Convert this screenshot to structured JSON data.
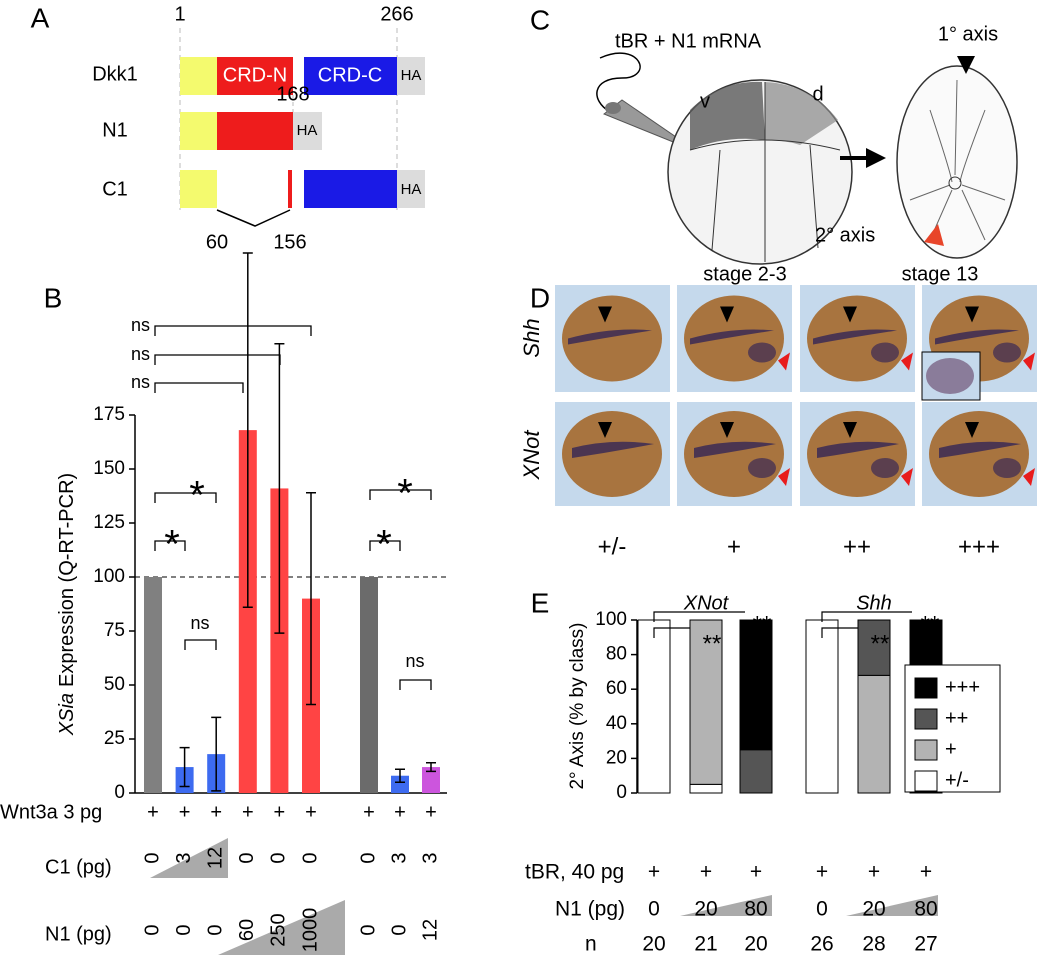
{
  "panel_a": {
    "label": "A",
    "rows": [
      "Dkk1",
      "N1",
      "C1"
    ],
    "positions": [
      1,
      266,
      168,
      60,
      156
    ],
    "domains": [
      "CRD-N",
      "CRD-C"
    ],
    "tag": "HA"
  },
  "panel_c": {
    "label": "C",
    "injection": "tBR + N1 mRNA",
    "sides": [
      "v",
      "d"
    ],
    "axes": [
      "1° axis",
      "2° axis"
    ],
    "stages": [
      "stage 2-3",
      "stage 13"
    ]
  },
  "panel_d": {
    "label": "D",
    "markers": [
      "Shh",
      "XNot"
    ],
    "classes": [
      "+/-",
      "+",
      "++",
      "+++"
    ]
  },
  "chart_data": [
    {
      "type": "bar",
      "panel_label": "B",
      "ylabel_italic": "XSia",
      "ylabel": "Expression (Q-RT-PCR)",
      "values": [
        100,
        12,
        18,
        168,
        141,
        90,
        100,
        8,
        12
      ],
      "errors": [
        null,
        9,
        17,
        82,
        67,
        49,
        null,
        3,
        2
      ],
      "colors": [
        "#808080",
        "#3d6bf0",
        "#3d6bf0",
        "#ff4444",
        "#ff4444",
        "#ff4444",
        "#6b6b6b",
        "#3d6bf0",
        "#cc55dd"
      ],
      "ylim": [
        0,
        175
      ],
      "yticks": [
        0,
        25,
        50,
        75,
        100,
        125,
        150,
        175
      ],
      "reference_line": 100,
      "significance": [
        "ns",
        "ns",
        "ns",
        "*",
        "*",
        "ns",
        "*",
        "*",
        "ns"
      ],
      "conditions": [
        {
          "label": "Wnt3a 3 pg",
          "values": [
            "+",
            "+",
            "+",
            "+",
            "+",
            "+",
            "+",
            "+",
            "+"
          ]
        },
        {
          "label": "C1 (pg)",
          "values": [
            0,
            3,
            12,
            0,
            0,
            0,
            0,
            3,
            3
          ]
        },
        {
          "label": "N1 (pg)",
          "values": [
            0,
            0,
            0,
            60,
            250,
            1000,
            0,
            0,
            12
          ]
        }
      ]
    },
    {
      "type": "stacked_bar",
      "panel_label": "E",
      "ylabel": "2° Axis (% by class)",
      "groups": [
        "XNot",
        "Shh"
      ],
      "series": [
        {
          "name": "+/-",
          "color": "#ffffff",
          "values": [
            100,
            5,
            0,
            100,
            0,
            0
          ]
        },
        {
          "name": "+",
          "color": "#b3b3b3",
          "values": [
            0,
            95,
            0,
            0,
            68,
            0
          ]
        },
        {
          "name": "++",
          "color": "#555555",
          "values": [
            0,
            0,
            25,
            0,
            32,
            0
          ]
        },
        {
          "name": "+++",
          "color": "#000000",
          "values": [
            0,
            0,
            75,
            0,
            0,
            100
          ]
        }
      ],
      "ylim": [
        0,
        100
      ],
      "yticks": [
        0,
        20,
        40,
        60,
        80,
        100
      ],
      "legend": "right",
      "significance": [
        "**",
        "**",
        "**",
        "**"
      ],
      "conditions": [
        {
          "label": "tBR, 40 pg",
          "values": [
            "+",
            "+",
            "+",
            "+",
            "+",
            "+"
          ]
        },
        {
          "label": "N1 (pg)",
          "values": [
            0,
            20,
            80,
            0,
            20,
            80
          ]
        },
        {
          "label": "n",
          "values": [
            20,
            21,
            20,
            26,
            28,
            27
          ]
        }
      ]
    }
  ]
}
